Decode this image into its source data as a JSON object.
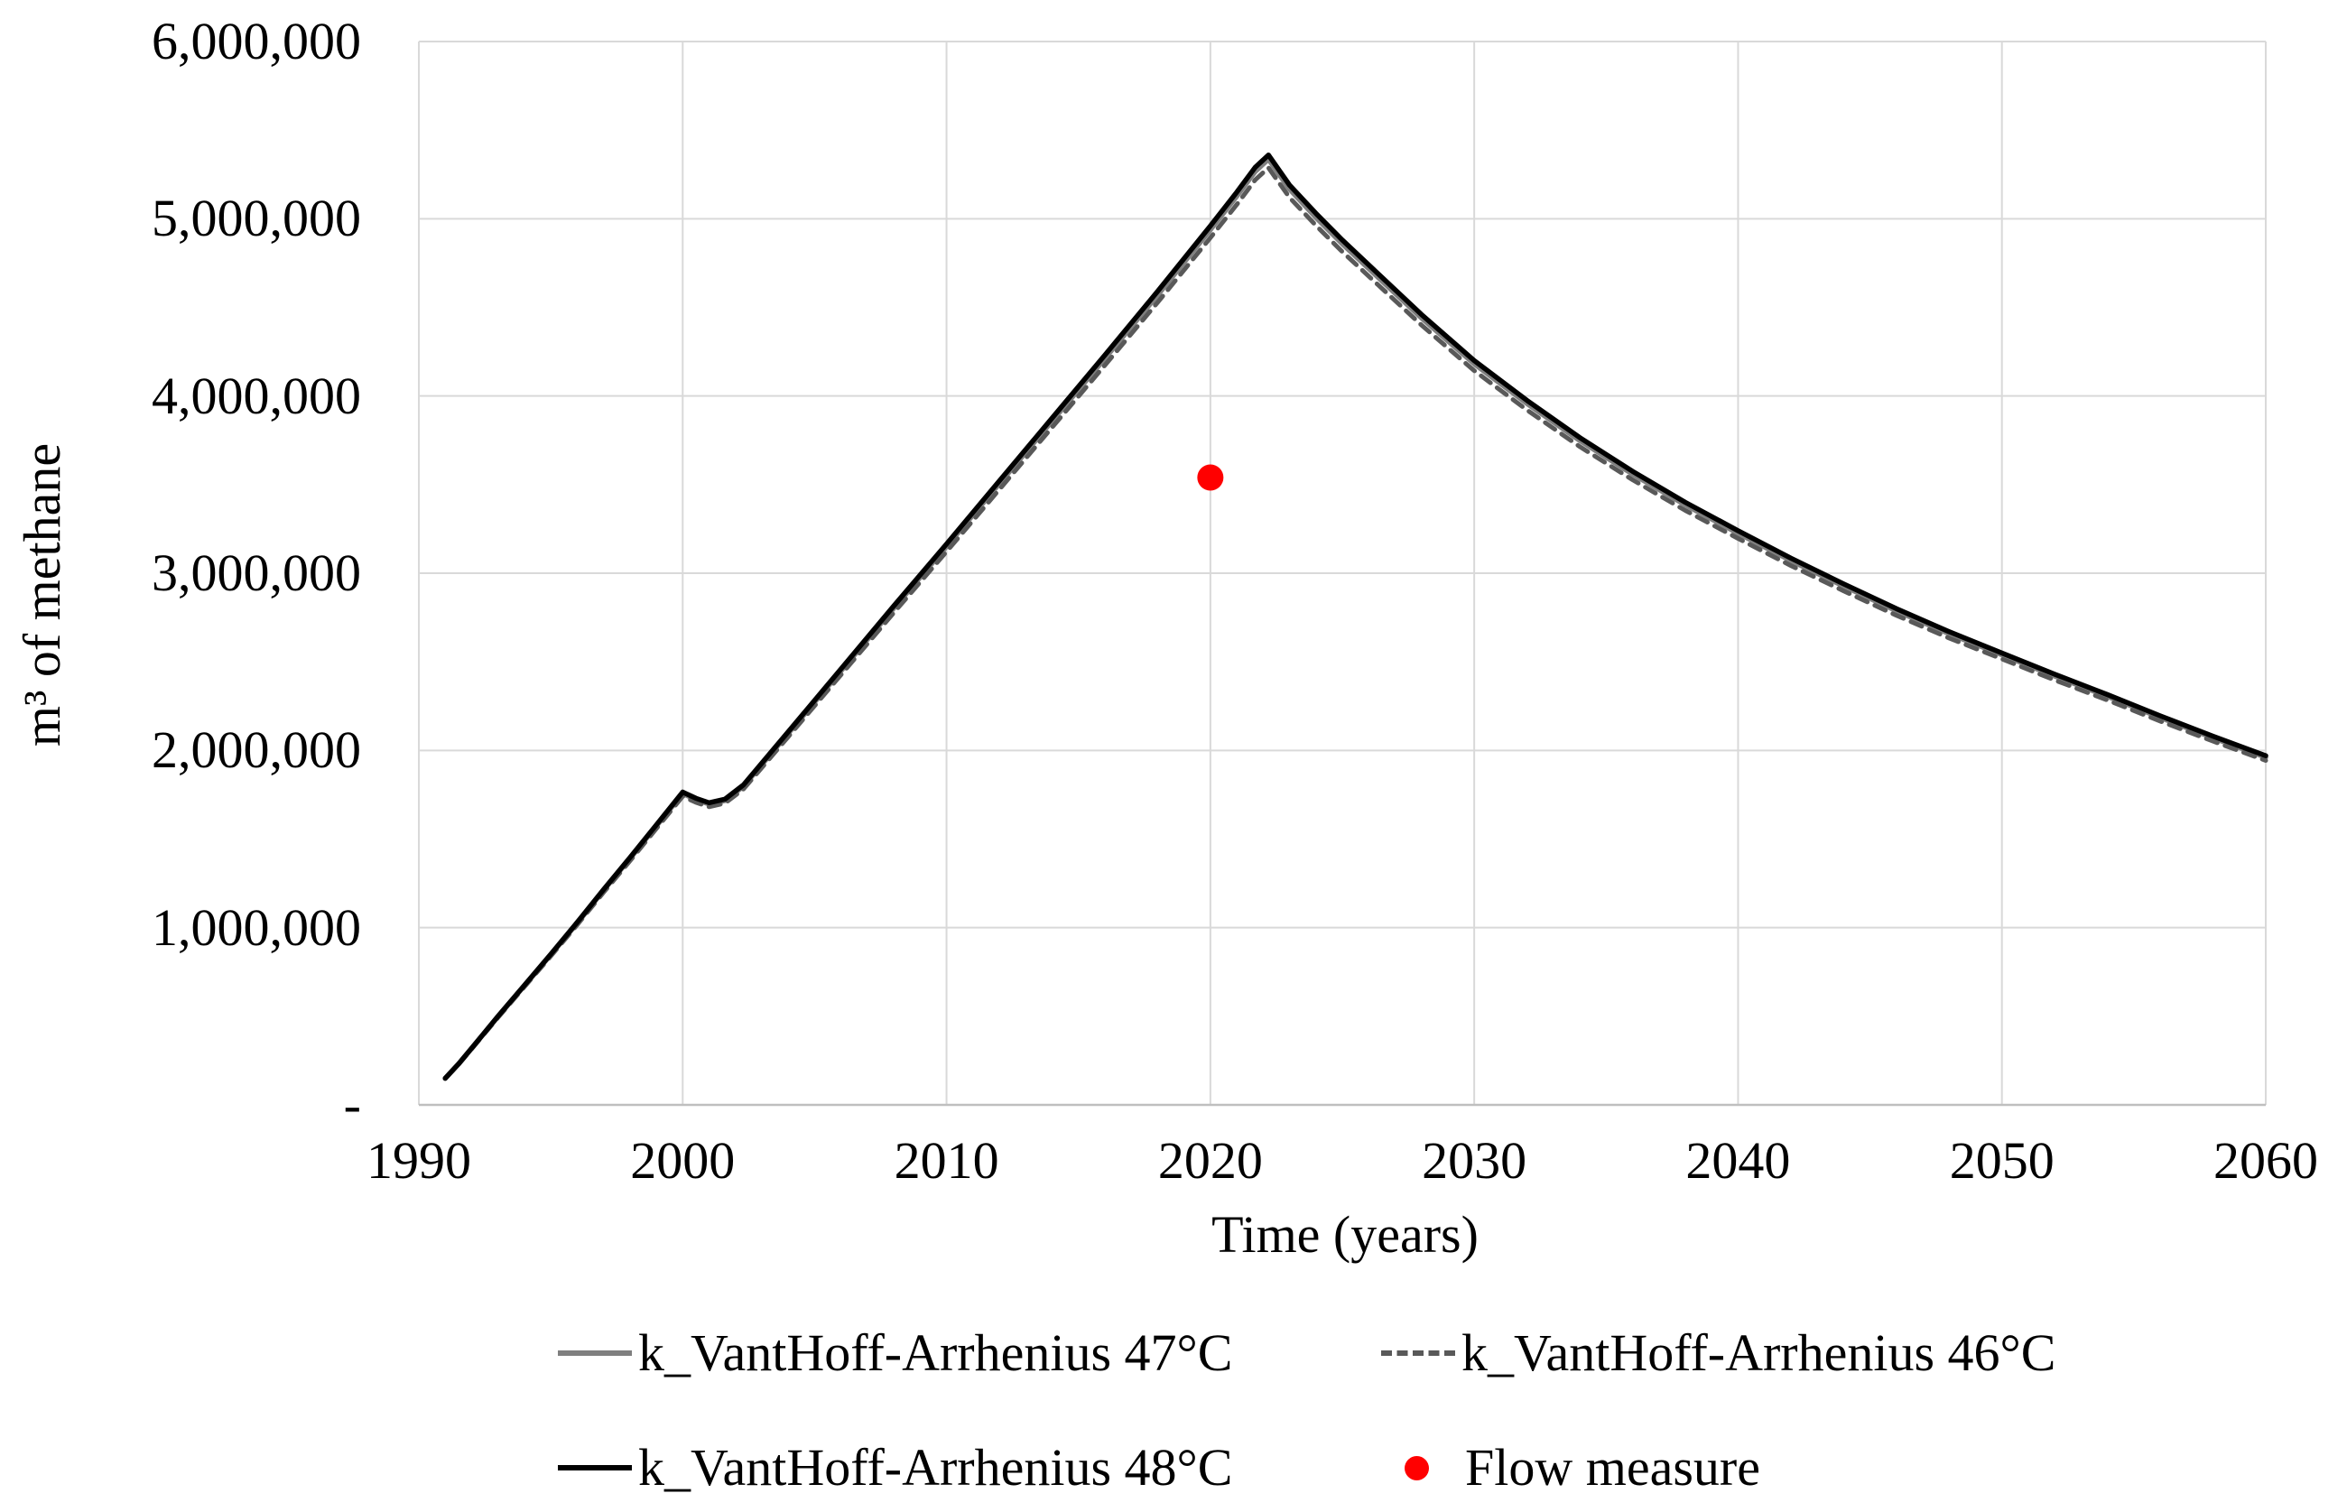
{
  "figure": {
    "background": "#ffffff",
    "grid_color": "#d9d9d9",
    "axis_line_color": "#bfbfbf",
    "text_color": "#000000"
  },
  "axes": {
    "x_title": "Time (years)",
    "y_title": "m³ of methane",
    "x_ticks": [
      {
        "value": 1990,
        "label": "1990"
      },
      {
        "value": 2000,
        "label": "2000"
      },
      {
        "value": 2010,
        "label": "2010"
      },
      {
        "value": 2020,
        "label": "2020"
      },
      {
        "value": 2030,
        "label": "2030"
      },
      {
        "value": 2040,
        "label": "2040"
      },
      {
        "value": 2050,
        "label": "2050"
      },
      {
        "value": 2060,
        "label": "2060"
      }
    ],
    "y_ticks": [
      {
        "value": 0,
        "label": "-"
      },
      {
        "value": 1000000,
        "label": "1,000,000"
      },
      {
        "value": 2000000,
        "label": "2,000,000"
      },
      {
        "value": 3000000,
        "label": "3,000,000"
      },
      {
        "value": 4000000,
        "label": "4,000,000"
      },
      {
        "value": 5000000,
        "label": "5,000,000"
      },
      {
        "value": 6000000,
        "label": "6,000,000"
      }
    ]
  },
  "legend": {
    "position": "bottom",
    "items": [
      {
        "label": "k_VantHoff-Arrhenius 47°C",
        "style": "solid",
        "color": "#7f7f7f"
      },
      {
        "label": "k_VantHoff-Arrhenius 46°C",
        "style": "dashed",
        "color": "#595959"
      },
      {
        "label": "k_VantHoff-Arrhenius 48°C",
        "style": "solid",
        "color": "#000000"
      },
      {
        "label": "Flow measure",
        "style": "dot",
        "color": "#ff0000"
      }
    ]
  },
  "chart_data": {
    "type": "line",
    "title": "",
    "xlabel": "Time (years)",
    "ylabel": "m³ of methane",
    "xlim": [
      1990,
      2060
    ],
    "ylim": [
      0,
      6000000
    ],
    "grid": true,
    "legend_position": "bottom",
    "x": [
      1991,
      1991.5,
      1992,
      1993,
      1994,
      1995,
      1996,
      1997,
      1998,
      1999,
      2000,
      2000.5,
      2001,
      2001.6,
      2002.3,
      2004,
      2006,
      2008,
      2010,
      2012,
      2014,
      2016,
      2018,
      2020,
      2021,
      2021.7,
      2022.2,
      2023,
      2024,
      2025,
      2026,
      2028,
      2030,
      2032,
      2034,
      2036,
      2038,
      2040,
      2042,
      2044,
      2046,
      2048,
      2050,
      2052,
      2054,
      2056,
      2058,
      2060
    ],
    "series": [
      {
        "name": "k_VantHoff-Arrhenius 47°C",
        "color": "#7f7f7f",
        "style": "solid",
        "values": [
          149000,
          229000,
          319000,
          498000,
          672000,
          846000,
          1025000,
          1210000,
          1389000,
          1573000,
          1757000,
          1722000,
          1697000,
          1717000,
          1797000,
          2096000,
          2449000,
          2802000,
          3151000,
          3504000,
          3858000,
          4211000,
          4569000,
          4938000,
          5127000,
          5266000,
          5336000,
          5167000,
          5007000,
          4858000,
          4719000,
          4440000,
          4181000,
          3957000,
          3748000,
          3559000,
          3385000,
          3225000,
          3071000,
          2927000,
          2787000,
          2658000,
          2539000,
          2419000,
          2305000,
          2185000,
          2071000,
          1961000
        ]
      },
      {
        "name": "k_VantHoff-Arrhenius 46°C",
        "color": "#595959",
        "style": "dashed",
        "values": [
          148000,
          227000,
          316000,
          493000,
          666000,
          839000,
          1016000,
          1199000,
          1376000,
          1559000,
          1741000,
          1707000,
          1682000,
          1702000,
          1781000,
          2077000,
          2427000,
          2777000,
          3122000,
          3472000,
          3823000,
          4173000,
          4528000,
          4893000,
          5080000,
          5219000,
          5288000,
          5120000,
          4962000,
          4814000,
          4676000,
          4400000,
          4143000,
          3921000,
          3714000,
          3527000,
          3354000,
          3196000,
          3043000,
          2900000,
          2762000,
          2634000,
          2516000,
          2397000,
          2284000,
          2165000,
          2052000,
          1943000
        ]
      },
      {
        "name": "k_VantHoff-Arrhenius 48°C",
        "color": "#000000",
        "style": "solid",
        "values": [
          150000,
          230000,
          320000,
          500000,
          675000,
          850000,
          1030000,
          1215000,
          1395000,
          1580000,
          1765000,
          1730000,
          1705000,
          1725000,
          1805000,
          2105000,
          2460000,
          2815000,
          3165000,
          3520000,
          3875000,
          4230000,
          4590000,
          4960000,
          5150000,
          5290000,
          5360000,
          5190000,
          5030000,
          4880000,
          4740000,
          4460000,
          4200000,
          3975000,
          3765000,
          3575000,
          3400000,
          3240000,
          3085000,
          2940000,
          2800000,
          2670000,
          2550000,
          2430000,
          2315000,
          2195000,
          2080000,
          1970000
        ]
      }
    ],
    "scatter": {
      "name": "Flow measure",
      "color": "#ff0000",
      "points": [
        {
          "x": 2020,
          "y": 3540000
        }
      ]
    }
  }
}
